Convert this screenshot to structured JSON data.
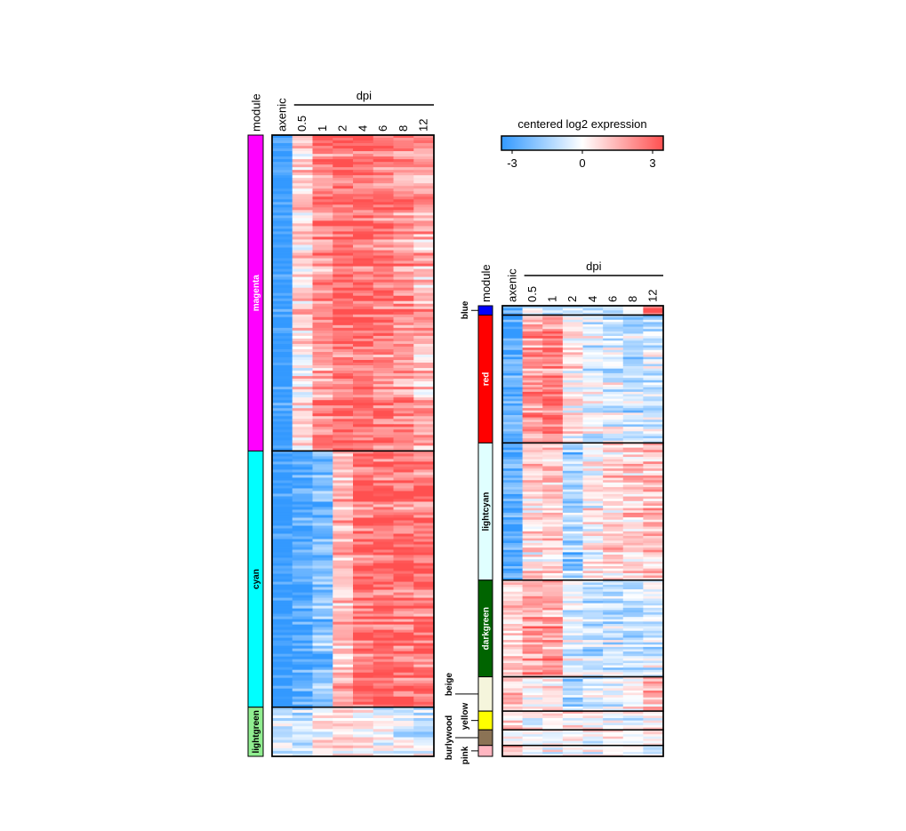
{
  "chart_data": [
    {
      "type": "heatmap",
      "column_group_label": "dpi",
      "module_header": "module",
      "columns": [
        "axenic",
        "0.5",
        "1",
        "2",
        "4",
        "6",
        "8",
        "12"
      ],
      "modules": [
        {
          "name": "magenta",
          "color": "#ff00ff",
          "weight": 9.0,
          "profile": [
            -3,
            0.6,
            1.8,
            2.4,
            2.4,
            2.2,
            1.8,
            1.2
          ]
        },
        {
          "name": "cyan",
          "color": "#00ffff",
          "weight": 7.3,
          "profile": [
            -3,
            -2.4,
            -1.8,
            1.2,
            2.6,
            2.6,
            2.4,
            2.4
          ]
        },
        {
          "name": "lightgreen",
          "color": "#90ee90",
          "weight": 1.4,
          "profile": [
            -0.5,
            -0.6,
            0.3,
            0.6,
            0.1,
            0.0,
            -0.4,
            -0.6
          ]
        }
      ]
    },
    {
      "type": "heatmap",
      "column_group_label": "dpi",
      "module_header": "module",
      "columns": [
        "axenic",
        "0.5",
        "1",
        "2",
        "4",
        "6",
        "8",
        "12"
      ],
      "modules": [
        {
          "name": "blue",
          "color": "#0000ff",
          "weight": 0.3,
          "profile": [
            -2.2,
            -0.3,
            -1.2,
            -1.0,
            -1.0,
            -1.0,
            -0.6,
            2.0
          ]
        },
        {
          "name": "red",
          "color": "#ff0000",
          "weight": 4.1,
          "profile": [
            -2.4,
            1.8,
            2.0,
            0.2,
            -0.4,
            -0.6,
            -1.0,
            -0.8
          ]
        },
        {
          "name": "lightcyan",
          "color": "#e0ffff",
          "weight": 4.4,
          "profile": [
            -2.4,
            0.6,
            0.8,
            -1.4,
            0.2,
            0.6,
            0.8,
            1.0
          ]
        },
        {
          "name": "darkgreen",
          "color": "#006400",
          "weight": 3.1,
          "profile": [
            0.8,
            1.6,
            1.6,
            -0.4,
            -1.0,
            -0.8,
            -0.8,
            -0.6
          ]
        },
        {
          "name": "beige",
          "color": "#f5f5dc",
          "weight": 1.1,
          "profile": [
            1.0,
            0.0,
            0.4,
            -1.6,
            -0.6,
            -0.4,
            0.0,
            1.2
          ]
        },
        {
          "name": "yellow",
          "color": "#ffff00",
          "weight": 0.6,
          "profile": [
            0.8,
            0.0,
            0.2,
            0.8,
            0.0,
            0.0,
            0.0,
            0.0
          ]
        },
        {
          "name": "burlywood",
          "color": "#8b7355",
          "weight": 0.5,
          "profile": [
            0.0,
            0.0,
            0.0,
            0.0,
            0.0,
            0.0,
            0.0,
            0.0
          ]
        },
        {
          "name": "pink",
          "color": "#ffb6c1",
          "weight": 0.35,
          "profile": [
            1.4,
            0.0,
            0.0,
            0.0,
            0.0,
            0.0,
            0.0,
            -0.4
          ]
        }
      ]
    }
  ],
  "colorbar": {
    "title": "centered log2 expression",
    "ticks": [
      {
        "value": -3,
        "label": "-3"
      },
      {
        "value": 0,
        "label": "0"
      },
      {
        "value": 3,
        "label": "3"
      }
    ],
    "range": [
      -3,
      3
    ],
    "colors": {
      "low": "#3399ff",
      "mid": "#ffffff",
      "high": "#ff5050"
    }
  }
}
